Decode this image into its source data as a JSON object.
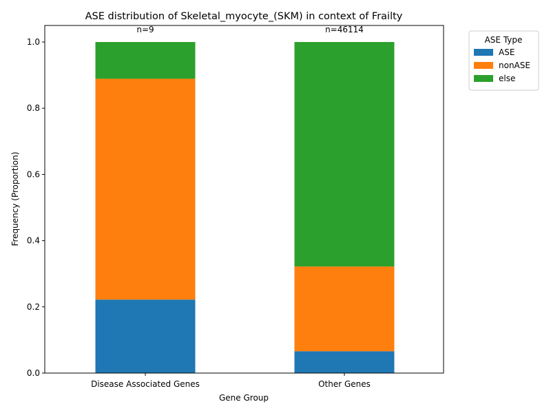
{
  "chart_data": {
    "type": "bar",
    "stacked": true,
    "title": "ASE distribution of Skeletal_myocyte_(SKM) in context of Frailty",
    "xlabel": "Gene Group",
    "ylabel": "Frequency (Proportion)",
    "ylim": [
      0,
      1.05
    ],
    "yticks": [
      "0.0",
      "0.2",
      "0.4",
      "0.6",
      "0.8",
      "1.0"
    ],
    "categories": [
      "Disease Associated Genes",
      "Other Genes"
    ],
    "annotations": [
      "n=9",
      "n=46114"
    ],
    "series": [
      {
        "name": "ASE",
        "color": "#1f77b4",
        "values": [
          0.222,
          0.066
        ]
      },
      {
        "name": "nonASE",
        "color": "#ff7f0e",
        "values": [
          0.667,
          0.256
        ]
      },
      {
        "name": "else",
        "color": "#2ca02c",
        "values": [
          0.111,
          0.678
        ]
      }
    ],
    "legend": {
      "title": "ASE Type",
      "position": "outside-top-right"
    },
    "grid": false
  }
}
